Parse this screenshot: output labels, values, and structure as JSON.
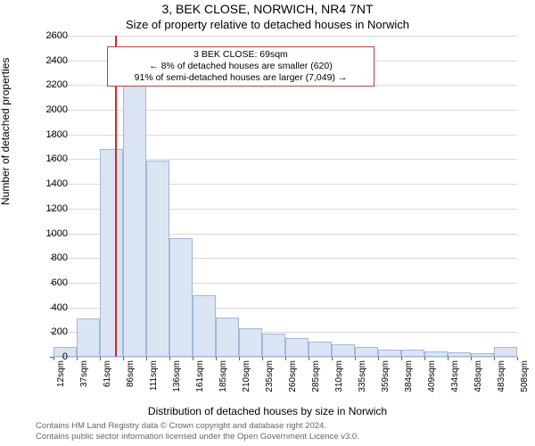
{
  "title": "3, BEK CLOSE, NORWICH, NR4 7NT",
  "subtitle": "Size of property relative to detached houses in Norwich",
  "y_axis_label": "Number of detached properties",
  "x_axis_label": "Distribution of detached houses by size in Norwich",
  "title_fontsize": 14,
  "subtitle_fontsize": 13,
  "axis_label_fontsize": 12,
  "tick_fontsize": 11,
  "chart": {
    "type": "histogram",
    "background_color": "#ffffff",
    "grid_color": "#d9d9d9",
    "bar_fill": "#dbe4f2",
    "bar_border": "#9fb8db",
    "reference_line_color": "#d62728",
    "reference_value": 69,
    "ylim": [
      0,
      2600
    ],
    "ytick_step": 200,
    "yticks": [
      0,
      200,
      400,
      600,
      800,
      1000,
      1200,
      1400,
      1600,
      1800,
      2000,
      2200,
      2400,
      2600
    ],
    "xlim": [
      0,
      520
    ],
    "x_tick_labels": [
      "12sqm",
      "37sqm",
      "61sqm",
      "86sqm",
      "111sqm",
      "136sqm",
      "161sqm",
      "185sqm",
      "210sqm",
      "235sqm",
      "260sqm",
      "285sqm",
      "310sqm",
      "335sqm",
      "359sqm",
      "384sqm",
      "409sqm",
      "434sqm",
      "458sqm",
      "483sqm",
      "508sqm"
    ],
    "bin_width_sqm": 25,
    "bars": [
      80,
      310,
      1680,
      2250,
      1590,
      960,
      500,
      320,
      230,
      190,
      150,
      120,
      100,
      80,
      60,
      55,
      45,
      35,
      30,
      80
    ]
  },
  "annotation": {
    "lines": [
      "3 BEK CLOSE: 69sqm",
      "← 8% of detached houses are smaller (620)",
      "91% of semi-detached houses are larger (7,049) →"
    ],
    "border_color": "#c04040",
    "background_color": "#ffffff",
    "fontsize": 10.5
  },
  "attribution": {
    "line1": "Contains HM Land Registry data © Crown copyright and database right 2024.",
    "line2": "Contains public sector information licensed under the Open Government Licence v3.0."
  }
}
